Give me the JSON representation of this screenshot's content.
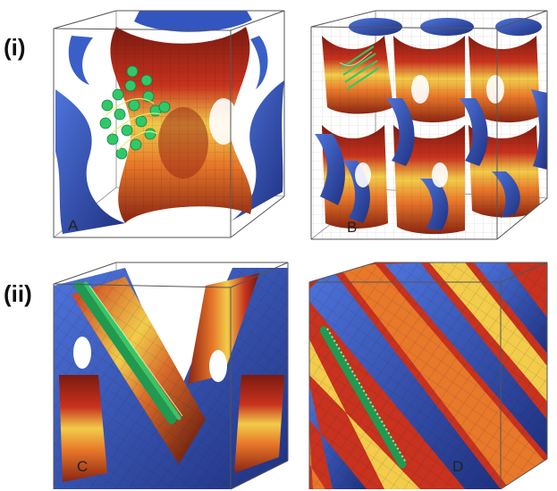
{
  "row_labels": [
    "(i)",
    "(ii)"
  ],
  "panels": [
    {
      "label": "A",
      "structure": "gyroid-single-cell"
    },
    {
      "label": "B",
      "structure": "gyroid-multi-cell"
    },
    {
      "label": "C",
      "structure": "diamond-single-cell"
    },
    {
      "label": "D",
      "structure": "diamond-multi-cell"
    }
  ],
  "colors": {
    "surface_dark": "#7a1a10",
    "surface_red": "#c8321e",
    "surface_orange": "#e8782a",
    "surface_yellow": "#f2cc4a",
    "channel_blue": "#3a5fc8",
    "channel_blue_dark": "#24398a",
    "helix_green": "#2fc96a"
  }
}
